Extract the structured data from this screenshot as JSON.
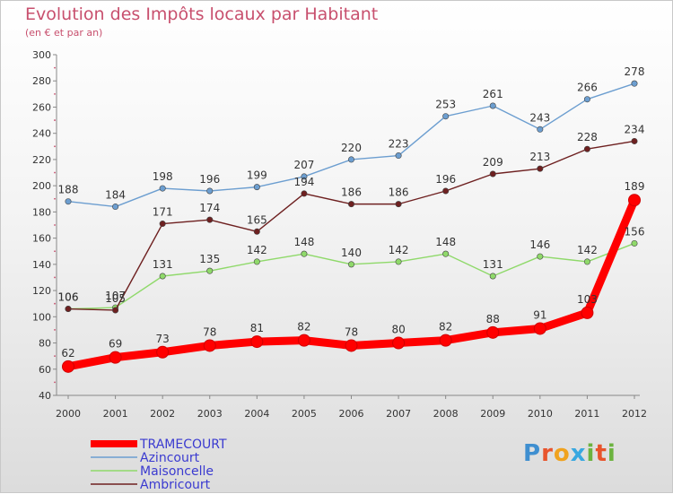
{
  "chart_data": {
    "type": "line",
    "title": "Evolution des Impôts locaux par Habitant",
    "subtitle": "(en € et par an)",
    "xlabel": "",
    "ylabel": "",
    "x": [
      "2000",
      "2001",
      "2002",
      "2003",
      "2004",
      "2005",
      "2006",
      "2007",
      "2008",
      "2009",
      "2010",
      "2011",
      "2012"
    ],
    "ylim": [
      40,
      300
    ],
    "yticks": [
      "40",
      "60",
      "80",
      "100",
      "120",
      "140",
      "160",
      "180",
      "200",
      "220",
      "240",
      "260",
      "280",
      "300"
    ],
    "grid": false,
    "legend_position": "bottom-left",
    "series": [
      {
        "name": "TRAMECOURT",
        "color": "#ff0000",
        "values": [
          62,
          69,
          73,
          78,
          81,
          82,
          78,
          80,
          82,
          88,
          91,
          103,
          189
        ]
      },
      {
        "name": "Azincourt",
        "color": "#6c9ed0",
        "values": [
          188,
          184,
          198,
          196,
          199,
          207,
          220,
          223,
          253,
          261,
          243,
          266,
          278
        ]
      },
      {
        "name": "Maisoncelle",
        "color": "#8fd96a",
        "values": [
          106,
          107,
          131,
          135,
          142,
          148,
          140,
          142,
          148,
          131,
          146,
          142,
          156
        ]
      },
      {
        "name": "Ambricourt",
        "color": "#6e2020",
        "values": [
          106,
          105,
          171,
          174,
          165,
          194,
          186,
          186,
          196,
          209,
          213,
          228,
          234
        ]
      }
    ]
  },
  "logo": {
    "letters": [
      {
        "char": "P",
        "color": "#3f8fd0"
      },
      {
        "char": "r",
        "color": "#e8542c"
      },
      {
        "char": "o",
        "color": "#f0a21e"
      },
      {
        "char": "x",
        "color": "#39a8e0"
      },
      {
        "char": "i",
        "color": "#6cb33f"
      },
      {
        "char": "t",
        "color": "#e8542c"
      },
      {
        "char": "i",
        "color": "#6cb33f"
      }
    ]
  }
}
